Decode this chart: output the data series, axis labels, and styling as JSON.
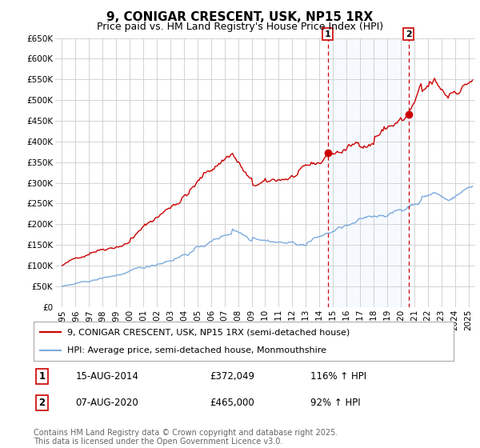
{
  "title": "9, CONIGAR CRESCENT, USK, NP15 1RX",
  "subtitle": "Price paid vs. HM Land Registry's House Price Index (HPI)",
  "ylim": [
    0,
    650000
  ],
  "xlim": [
    1994.5,
    2025.5
  ],
  "yticks": [
    0,
    50000,
    100000,
    150000,
    200000,
    250000,
    300000,
    350000,
    400000,
    450000,
    500000,
    550000,
    600000,
    650000
  ],
  "ytick_labels": [
    "£0",
    "£50K",
    "£100K",
    "£150K",
    "£200K",
    "£250K",
    "£300K",
    "£350K",
    "£400K",
    "£450K",
    "£500K",
    "£550K",
    "£600K",
    "£650K"
  ],
  "xtick_years": [
    1995,
    1996,
    1997,
    1998,
    1999,
    2000,
    2001,
    2002,
    2003,
    2004,
    2005,
    2006,
    2007,
    2008,
    2009,
    2010,
    2011,
    2012,
    2013,
    2014,
    2015,
    2016,
    2017,
    2018,
    2019,
    2020,
    2021,
    2022,
    2023,
    2024,
    2025
  ],
  "red_line_color": "#cc0000",
  "blue_line_color": "#7aaadd",
  "vline_color": "#cc0000",
  "shade_color": "#ddeeff",
  "background_color": "#ffffff",
  "grid_color": "#cccccc",
  "legend_entry1": "9, CONIGAR CRESCENT, USK, NP15 1RX (semi-detached house)",
  "legend_entry2": "HPI: Average price, semi-detached house, Monmouthshire",
  "marker1_date": "15-AUG-2014",
  "marker1_price": "£372,049",
  "marker1_hpi": "116% ↑ HPI",
  "marker2_date": "07-AUG-2020",
  "marker2_price": "£465,000",
  "marker2_hpi": "92% ↑ HPI",
  "copyright": "Contains HM Land Registry data © Crown copyright and database right 2025.\nThis data is licensed under the Open Government Licence v3.0.",
  "vline1_x": 2014.62,
  "vline2_x": 2020.58,
  "dot1_x": 2014.62,
  "dot1_y": 372049,
  "dot2_x": 2020.58,
  "dot2_y": 465000,
  "title_fontsize": 11,
  "subtitle_fontsize": 9,
  "tick_fontsize": 7.5,
  "legend_fontsize": 8,
  "note_fontsize": 7
}
